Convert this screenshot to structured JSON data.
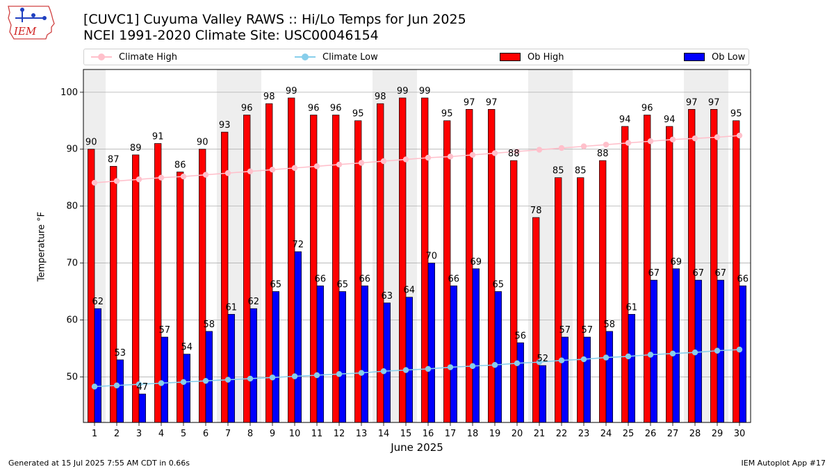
{
  "header": {
    "logo_text": "IEM",
    "title_line1": "[CUVC1] Cuyuma Valley RAWS :: Hi/Lo Temps for Jun 2025",
    "title_line2": "NCEI 1991-2020 Climate Site: USC00046154"
  },
  "legend": [
    {
      "label": "Climate High",
      "kind": "line",
      "color": "#ffc0cb"
    },
    {
      "label": "Climate Low",
      "kind": "line",
      "color": "#87ceeb"
    },
    {
      "label": "Ob High",
      "kind": "bar",
      "color": "#ff0000"
    },
    {
      "label": "Ob Low",
      "kind": "bar",
      "color": "#0000ff"
    }
  ],
  "footer": {
    "left": "Generated at 15 Jul 2025 7:55 AM CDT in 0.66s",
    "right": "IEM Autoplot App #17"
  },
  "chart_data": {
    "type": "bar",
    "xlabel": "June 2025",
    "ylabel": "Temperature °F",
    "ylim": [
      42,
      104
    ],
    "yticks": [
      50,
      60,
      70,
      80,
      90,
      100
    ],
    "grid": "horizontal",
    "legend_position": "top",
    "categories": [
      "1",
      "2",
      "3",
      "4",
      "5",
      "6",
      "7",
      "8",
      "9",
      "10",
      "11",
      "12",
      "13",
      "14",
      "15",
      "16",
      "17",
      "18",
      "19",
      "20",
      "21",
      "22",
      "23",
      "24",
      "25",
      "26",
      "27",
      "28",
      "29",
      "30"
    ],
    "weekend_days": [
      1,
      7,
      8,
      14,
      15,
      21,
      22,
      28,
      29
    ],
    "series": [
      {
        "name": "Ob High",
        "kind": "bar",
        "color": "#ff0000",
        "values": [
          90,
          87,
          89,
          91,
          86,
          90,
          93,
          96,
          98,
          99,
          96,
          96,
          95,
          98,
          99,
          99,
          95,
          97,
          97,
          88,
          78,
          85,
          85,
          88,
          94,
          96,
          94,
          97,
          97,
          95
        ]
      },
      {
        "name": "Ob Low",
        "kind": "bar",
        "color": "#0000ff",
        "values": [
          62,
          53,
          47,
          57,
          54,
          58,
          61,
          62,
          65,
          72,
          66,
          65,
          66,
          63,
          64,
          70,
          66,
          69,
          65,
          56,
          52,
          57,
          57,
          58,
          61,
          67,
          69,
          67,
          67,
          66
        ]
      },
      {
        "name": "Climate High",
        "kind": "line",
        "color": "#ffc0cb",
        "values": [
          84.1,
          84.4,
          84.7,
          85.0,
          85.2,
          85.5,
          85.8,
          86.1,
          86.4,
          86.7,
          87.0,
          87.3,
          87.6,
          87.9,
          88.2,
          88.5,
          88.7,
          89.0,
          89.3,
          89.6,
          89.9,
          90.2,
          90.5,
          90.8,
          91.1,
          91.4,
          91.7,
          91.9,
          92.1,
          92.4
        ]
      },
      {
        "name": "Climate Low",
        "kind": "line",
        "color": "#87ceeb",
        "values": [
          48.3,
          48.5,
          48.7,
          48.9,
          49.1,
          49.3,
          49.5,
          49.7,
          49.9,
          50.1,
          50.3,
          50.5,
          50.7,
          51.0,
          51.2,
          51.4,
          51.7,
          51.9,
          52.1,
          52.4,
          52.6,
          52.9,
          53.1,
          53.4,
          53.6,
          53.9,
          54.1,
          54.3,
          54.6,
          54.8
        ]
      }
    ]
  }
}
